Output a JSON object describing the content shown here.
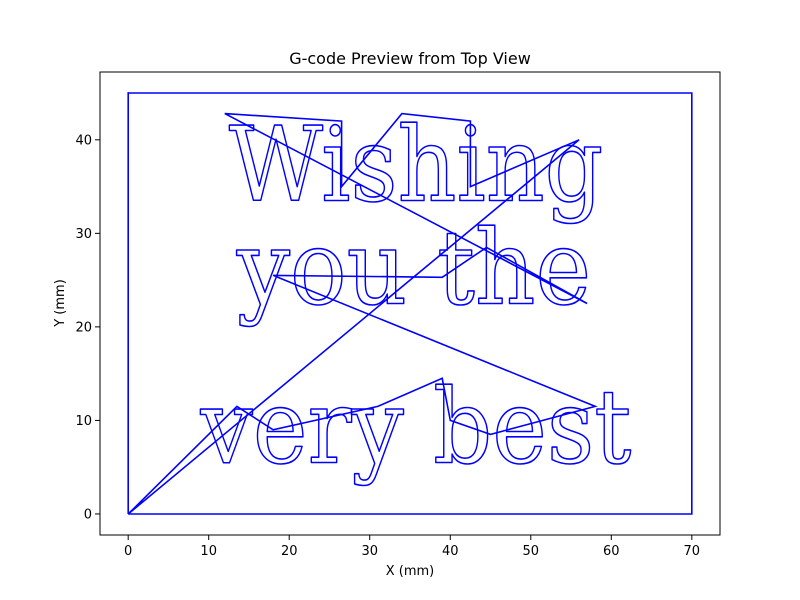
{
  "chart_data": {
    "type": "line",
    "title": "G-code Preview from Top View",
    "xlabel": "X (mm)",
    "ylabel": "Y (mm)",
    "xlim": [
      -3.5,
      73.5
    ],
    "ylim": [
      -2.25,
      47.25
    ],
    "xticks": [
      0,
      10,
      20,
      30,
      40,
      50,
      60,
      70
    ],
    "yticks": [
      0,
      10,
      20,
      30,
      40
    ],
    "grid": false,
    "line_color": "#0000ff",
    "engraved_text": [
      "Wishing",
      "you the",
      "very best"
    ],
    "series": [
      {
        "kind": "border",
        "points": [
          [
            0,
            0
          ],
          [
            70,
            0
          ],
          [
            70,
            45
          ],
          [
            0,
            45
          ],
          [
            0,
            45.1
          ],
          [
            0,
            0
          ]
        ]
      },
      {
        "kind": "travel",
        "points": [
          [
            0,
            0
          ],
          [
            13.5,
            11.5
          ],
          [
            18,
            9
          ],
          [
            31,
            11.5
          ],
          [
            39,
            14.5
          ],
          [
            40,
            10
          ],
          [
            45,
            8.5
          ],
          [
            58,
            11.5
          ],
          [
            18,
            25.5
          ],
          [
            39,
            25.3
          ],
          [
            44.5,
            28.5
          ],
          [
            57,
            22.5
          ],
          [
            12,
            42.8
          ],
          [
            26.5,
            42
          ],
          [
            26.5,
            35
          ],
          [
            34,
            42.8
          ],
          [
            42.5,
            42
          ],
          [
            42.5,
            35
          ],
          [
            56,
            40
          ],
          [
            0,
            0
          ]
        ]
      }
    ],
    "text_lines": [
      {
        "text": "Wishing",
        "x": 12.5,
        "y": 33.5,
        "width": 46.5
      },
      {
        "text": "you the",
        "x": 13.5,
        "y": 22.5,
        "width": 44
      },
      {
        "text": "very best",
        "x": 9,
        "y": 5.5,
        "width": 53.5
      }
    ]
  }
}
